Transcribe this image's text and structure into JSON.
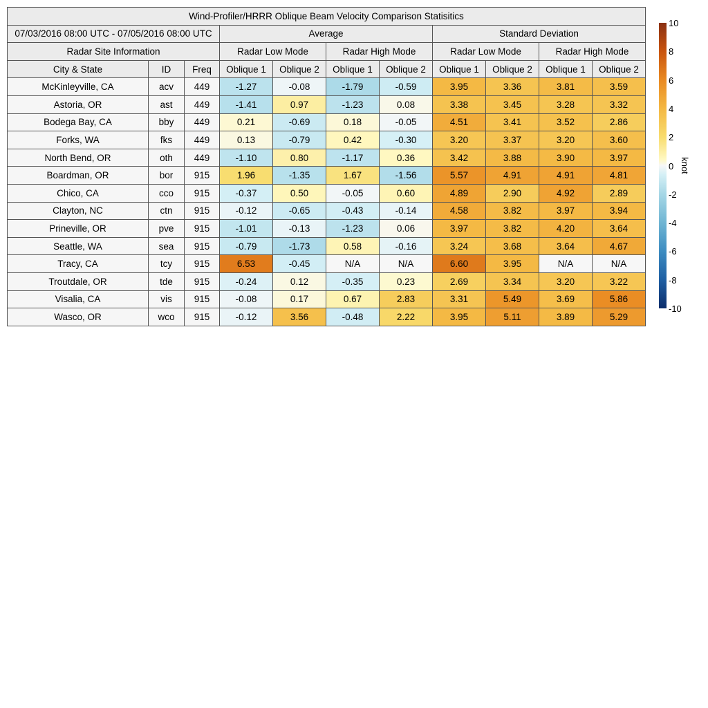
{
  "table": {
    "title": "Wind-Profiler/HRRR Oblique Beam Velocity Comparison Statisitics",
    "date_range": "07/03/2016 08:00 UTC - 07/05/2016 08:00 UTC",
    "average_label": "Average",
    "stddev_label": "Standard Deviation",
    "site_info_label": "Radar Site Information",
    "low_mode_label": "Radar Low Mode",
    "high_mode_label": "Radar High Mode",
    "col_city": "City & State",
    "col_id": "ID",
    "col_freq": "Freq",
    "oblique1": "Oblique 1",
    "oblique2": "Oblique 2"
  },
  "colorbar": {
    "unit": "knot",
    "ticks": [
      "10",
      "8",
      "6",
      "4",
      "2",
      "0",
      "-2",
      "-4",
      "-6",
      "-8",
      "-10"
    ],
    "range": [
      -10,
      10
    ]
  },
  "chart_data": {
    "type": "heatmap",
    "title": "Wind-Profiler/HRRR Oblique Beam Velocity Comparison Statisitics",
    "columns": [
      "Avg Low Oblique 1",
      "Avg Low Oblique 2",
      "Avg High Oblique 1",
      "Avg High Oblique 2",
      "Std Low Oblique 1",
      "Std Low Oblique 2",
      "Std High Oblique 1",
      "Std High Oblique 2"
    ],
    "rows": [
      {
        "city": "McKinleyville, CA",
        "id": "acv",
        "freq": "449",
        "values": [
          "-1.27",
          "-0.08",
          "-1.79",
          "-0.59",
          "3.95",
          "3.36",
          "3.81",
          "3.59"
        ]
      },
      {
        "city": "Astoria, OR",
        "id": "ast",
        "freq": "449",
        "values": [
          "-1.41",
          "0.97",
          "-1.23",
          "0.08",
          "3.38",
          "3.45",
          "3.28",
          "3.32"
        ]
      },
      {
        "city": "Bodega Bay, CA",
        "id": "bby",
        "freq": "449",
        "values": [
          "0.21",
          "-0.69",
          "0.18",
          "-0.05",
          "4.51",
          "3.41",
          "3.52",
          "2.86"
        ]
      },
      {
        "city": "Forks, WA",
        "id": "fks",
        "freq": "449",
        "values": [
          "0.13",
          "-0.79",
          "0.42",
          "-0.30",
          "3.20",
          "3.37",
          "3.20",
          "3.60"
        ]
      },
      {
        "city": "North Bend, OR",
        "id": "oth",
        "freq": "449",
        "values": [
          "-1.10",
          "0.80",
          "-1.17",
          "0.36",
          "3.42",
          "3.88",
          "3.90",
          "3.97"
        ]
      },
      {
        "city": "Boardman, OR",
        "id": "bor",
        "freq": "915",
        "values": [
          "1.96",
          "-1.35",
          "1.67",
          "-1.56",
          "5.57",
          "4.91",
          "4.91",
          "4.81"
        ]
      },
      {
        "city": "Chico, CA",
        "id": "cco",
        "freq": "915",
        "values": [
          "-0.37",
          "0.50",
          "-0.05",
          "0.60",
          "4.89",
          "2.90",
          "4.92",
          "2.89"
        ]
      },
      {
        "city": "Clayton, NC",
        "id": "ctn",
        "freq": "915",
        "values": [
          "-0.12",
          "-0.65",
          "-0.43",
          "-0.14",
          "4.58",
          "3.82",
          "3.97",
          "3.94"
        ]
      },
      {
        "city": "Prineville, OR",
        "id": "pve",
        "freq": "915",
        "values": [
          "-1.01",
          "-0.13",
          "-1.23",
          "0.06",
          "3.97",
          "3.82",
          "4.20",
          "3.64"
        ]
      },
      {
        "city": "Seattle, WA",
        "id": "sea",
        "freq": "915",
        "values": [
          "-0.79",
          "-1.73",
          "0.58",
          "-0.16",
          "3.24",
          "3.68",
          "3.64",
          "4.67"
        ]
      },
      {
        "city": "Tracy, CA",
        "id": "tcy",
        "freq": "915",
        "values": [
          "6.53",
          "-0.45",
          "N/A",
          "N/A",
          "6.60",
          "3.95",
          "N/A",
          "N/A"
        ]
      },
      {
        "city": "Troutdale, OR",
        "id": "tde",
        "freq": "915",
        "values": [
          "-0.24",
          "0.12",
          "-0.35",
          "0.23",
          "2.69",
          "3.34",
          "3.20",
          "3.22"
        ]
      },
      {
        "city": "Visalia, CA",
        "id": "vis",
        "freq": "915",
        "values": [
          "-0.08",
          "0.17",
          "0.67",
          "2.83",
          "3.31",
          "5.49",
          "3.69",
          "5.86"
        ]
      },
      {
        "city": "Wasco, OR",
        "id": "wco",
        "freq": "915",
        "values": [
          "-0.12",
          "3.56",
          "-0.48",
          "2.22",
          "3.95",
          "5.11",
          "3.89",
          "5.29"
        ]
      }
    ]
  }
}
